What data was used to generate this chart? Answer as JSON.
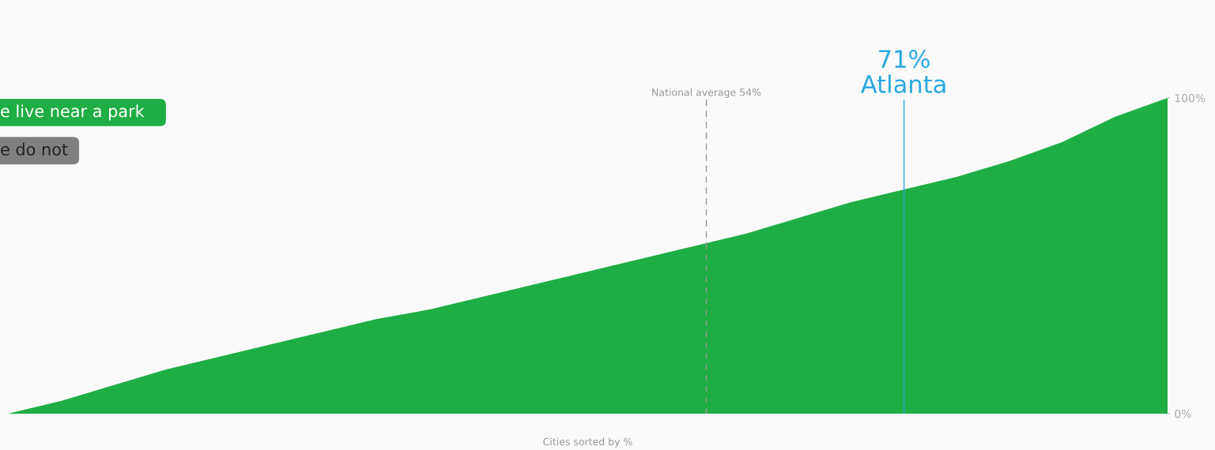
{
  "chart_data": {
    "type": "area",
    "xlabel": "Cities sorted by %",
    "categories": [
      null,
      null,
      null,
      null,
      null,
      null,
      null,
      null,
      null,
      null,
      null,
      null,
      null,
      null,
      null,
      null,
      null,
      null,
      null,
      null,
      null,
      null,
      null
    ],
    "series": [
      {
        "name": "e live near a park",
        "color": "#1fae45",
        "values": [
          0,
          4,
          9,
          14,
          18,
          22,
          26,
          30,
          33,
          37,
          41,
          45,
          49,
          53,
          57,
          62,
          67,
          71,
          75,
          80,
          86,
          94,
          100
        ]
      }
    ],
    "ylim": [
      0,
      100
    ],
    "yticks": [
      {
        "value": 0,
        "label": "0%"
      },
      {
        "value": 100,
        "label": "100%"
      }
    ],
    "tick_labels": "y",
    "annotations": [
      "e do not",
      {
        "text": "National average 54%",
        "y": 54
      },
      {
        "text": "71%\nAtlanta",
        "y": 71
      }
    ]
  }
}
